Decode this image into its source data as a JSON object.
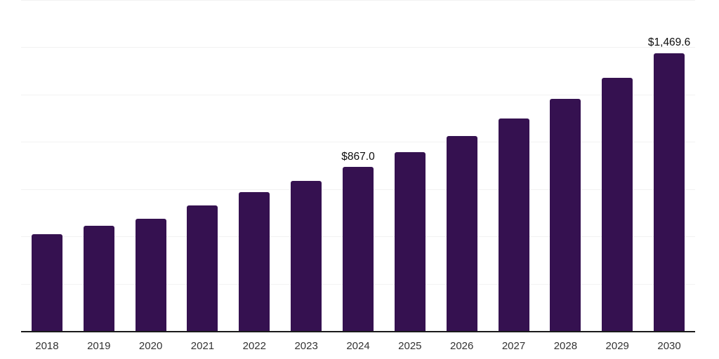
{
  "chart_data": {
    "type": "bar",
    "title": "",
    "xlabel": "",
    "ylabel": "",
    "categories": [
      "2018",
      "2019",
      "2020",
      "2021",
      "2022",
      "2023",
      "2024",
      "2025",
      "2026",
      "2027",
      "2028",
      "2029",
      "2030"
    ],
    "values": [
      510,
      558,
      594,
      662,
      733,
      795,
      867.0,
      947,
      1030,
      1124,
      1228,
      1338,
      1469.6
    ],
    "value_labels": {
      "2024": "$867.0",
      "2030": "$1,469.6"
    },
    "ylim": [
      0,
      1750
    ],
    "gridline_interval": 250,
    "grid": true,
    "legend": null,
    "colors": {
      "bar": "#351150",
      "axis": "#1a1a1a",
      "gridline": "#f2f2f2",
      "tick_label": "#333333",
      "data_label": "#0d0d0d",
      "background": "#ffffff"
    }
  }
}
